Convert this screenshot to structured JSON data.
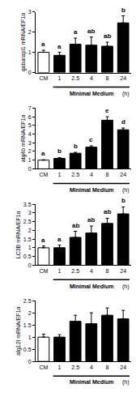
{
  "chart_data": [
    {
      "type": "bar",
      "y_label": "gabarapl1 mRNA/EF1α",
      "categories": [
        "CM",
        "1",
        "2.5",
        "4",
        "8",
        "24"
      ],
      "values": [
        1.0,
        0.85,
        1.4,
        1.35,
        1.3,
        2.45
      ],
      "errors": [
        0.1,
        0.15,
        0.3,
        0.4,
        0.2,
        0.35
      ],
      "letters": [
        "a",
        "a",
        "a",
        "ab",
        "ab",
        "b"
      ],
      "colors": [
        "#ffffff",
        "#000000",
        "#000000",
        "#000000",
        "#000000",
        "#000000"
      ],
      "ylim": [
        0,
        3
      ],
      "yticks": [
        0,
        1,
        2,
        3
      ],
      "grid": false,
      "group_label": "Minimal Medium",
      "unit_label": "(h)"
    },
    {
      "type": "bar",
      "y_label": "atg4b mRNA/EF1α",
      "categories": [
        "CM",
        "1",
        "2.5",
        "4",
        "8",
        "24"
      ],
      "values": [
        1.0,
        1.2,
        1.8,
        2.5,
        5.6,
        4.5
      ],
      "errors": [
        0.05,
        0.1,
        0.1,
        0.15,
        0.4,
        0.2
      ],
      "letters": [
        "a",
        "b",
        "b",
        "c",
        "e",
        "d"
      ],
      "colors": [
        "#ffffff",
        "#000000",
        "#000000",
        "#000000",
        "#000000",
        "#000000"
      ],
      "ylim": [
        0,
        7
      ],
      "yticks": [
        0,
        1,
        2,
        3,
        4,
        5,
        6,
        7
      ],
      "grid": false,
      "group_label": "Minimal Medium",
      "unit_label": "(h)"
    },
    {
      "type": "bar",
      "y_label": "LC3B mRNA/EF1α",
      "categories": [
        "CM",
        "1",
        "2.5",
        "4",
        "8",
        "24"
      ],
      "values": [
        1.0,
        1.0,
        1.6,
        1.85,
        2.4,
        2.95
      ],
      "errors": [
        0.1,
        0.15,
        0.35,
        0.4,
        0.3,
        0.4
      ],
      "letters": [
        "a",
        "a",
        "ab",
        "ab",
        "ab",
        "b"
      ],
      "colors": [
        "#ffffff",
        "#000000",
        "#000000",
        "#000000",
        "#000000",
        "#000000"
      ],
      "ylim": [
        0,
        3.5
      ],
      "yticks": [
        0,
        0.5,
        1,
        1.5,
        2,
        2.5,
        3,
        3.5
      ],
      "grid": false,
      "group_label": "Minimal Medium",
      "unit_label": "(h)"
    },
    {
      "type": "bar",
      "y_label": "atg12l mRNA/EF1α",
      "categories": [
        "CM",
        "1",
        "2.5",
        "4",
        "8",
        "24"
      ],
      "values": [
        1.0,
        1.0,
        1.65,
        1.55,
        1.9,
        1.75
      ],
      "errors": [
        0.12,
        0.1,
        0.25,
        0.45,
        0.3,
        0.35
      ],
      "colors": [
        "#ffffff",
        "#000000",
        "#000000",
        "#000000",
        "#000000",
        "#000000"
      ],
      "ylim": [
        0,
        2.5
      ],
      "yticks": [
        0,
        0.5,
        1,
        1.5,
        2,
        2.5
      ],
      "grid": false,
      "group_label": "Minimal Medium",
      "unit_label": "(h)"
    }
  ]
}
